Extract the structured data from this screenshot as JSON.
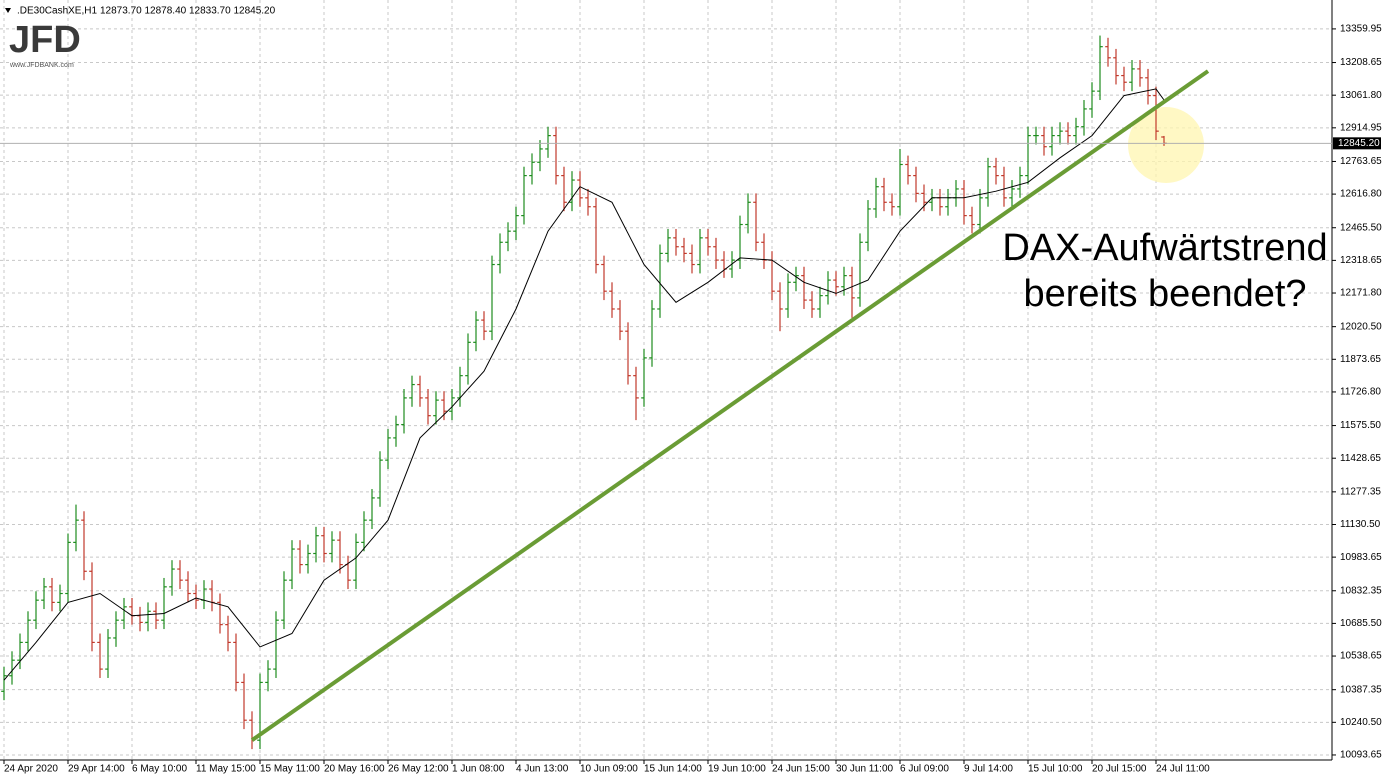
{
  "chart_data": {
    "type": "ohlc",
    "symbol": ".DE30CashXE,H1",
    "ohlc_label": "12873.70 12878.40 12833.70 12845.20",
    "logo": "JFD",
    "logo_url": "www.JFDBANK.com",
    "annotation": [
      "DAX-Aufwärtstrend",
      "bereits beendet?"
    ],
    "grid": true,
    "up_color": "#1e8c1e",
    "down_color": "#c0392b",
    "xlim": [
      -0.5,
      166
    ],
    "xticks": [
      {
        "value": 0,
        "label": "24 Apr 2020"
      },
      {
        "value": 8,
        "label": "29 Apr 14:00"
      },
      {
        "value": 16,
        "label": "6 May 10:00"
      },
      {
        "value": 24,
        "label": "11 May 15:00"
      },
      {
        "value": 32,
        "label": "15 May 11:00"
      },
      {
        "value": 40,
        "label": "20 May 16:00"
      },
      {
        "value": 48,
        "label": "26 May 12:00"
      },
      {
        "value": 56,
        "label": "1 Jun 08:00"
      },
      {
        "value": 64,
        "label": "4 Jun 13:00"
      },
      {
        "value": 72,
        "label": "10 Jun 09:00"
      },
      {
        "value": 80,
        "label": "15 Jun 14:00"
      },
      {
        "value": 88,
        "label": "19 Jun 10:00"
      },
      {
        "value": 96,
        "label": "24 Jun 15:00"
      },
      {
        "value": 104,
        "label": "30 Jun 11:00"
      },
      {
        "value": 112,
        "label": "6 Jul 09:00"
      },
      {
        "value": 120,
        "label": "9 Jul 14:00"
      },
      {
        "value": 128,
        "label": "15 Jul 10:00"
      },
      {
        "value": 136,
        "label": "20 Jul 15:00"
      },
      {
        "value": 144,
        "label": "24 Jul 11:00"
      }
    ],
    "ylim": [
      10071,
      13490
    ],
    "yticks": [
      13359.95,
      13208.65,
      {
        "value": 13061.8,
        "label": "13061.80"
      },
      12914.95,
      12763.65,
      {
        "value": 12616.8,
        "label": "12616.80"
      },
      {
        "value": 12465.5,
        "label": "12465.50"
      },
      12318.65,
      {
        "value": 12171.8,
        "label": "12171.80"
      },
      {
        "value": 12020.5,
        "label": "12020.50"
      },
      11873.65,
      {
        "value": 11726.8,
        "label": "11726.80"
      },
      {
        "value": 11575.5,
        "label": "11575.50"
      },
      11428.65,
      11277.35,
      {
        "value": 11130.5,
        "label": "11130.50"
      },
      10983.65,
      10832.35,
      {
        "value": 10685.5,
        "label": "10685.50"
      },
      10538.65,
      10387.35,
      {
        "value": 10240.5,
        "label": "10240.50"
      },
      10093.65
    ],
    "open": [
      10380,
      10450,
      10520,
      10600,
      10700,
      10790,
      10850,
      10780,
      10820,
      11050,
      11150,
      10920,
      10600,
      10480,
      10620,
      10700,
      10760,
      10720,
      10690,
      10740,
      10700,
      10850,
      10930,
      10880,
      10820,
      10790,
      10840,
      10780,
      10680,
      10600,
      10420,
      10250,
      10160,
      10420,
      10480,
      10700,
      10880,
      11020,
      10950,
      11000,
      11080,
      11000,
      11060,
      10950,
      10880,
      11050,
      11150,
      11250,
      11420,
      11520,
      11580,
      11700,
      11760,
      11700,
      11620,
      11690,
      11640,
      11700,
      11800,
      11950,
      12050,
      12000,
      12300,
      12400,
      12450,
      12520,
      12700,
      12760,
      12820,
      12880,
      12700,
      12580,
      12680,
      12600,
      12560,
      12300,
      12180,
      12100,
      12000,
      11800,
      11700,
      11880,
      12100,
      12350,
      12420,
      12380,
      12350,
      12300,
      12420,
      12380,
      12320,
      12280,
      12320,
      12480,
      12580,
      12400,
      12320,
      12180,
      12100,
      12220,
      12250,
      12140,
      12100,
      12160,
      12230,
      12200,
      12250,
      12150,
      12400,
      12550,
      12650,
      12580,
      12560,
      12750,
      12700,
      12620,
      12580,
      12600,
      12560,
      12600,
      12640,
      12520,
      12480,
      12600,
      12740,
      12700,
      12600,
      12640,
      12700,
      12880,
      12880,
      12830,
      12880,
      12900,
      12880,
      12920,
      13000,
      13080,
      13280,
      13230,
      13150,
      13120,
      13180,
      13140,
      13060,
      12873.7
    ],
    "high": [
      10490,
      10560,
      10640,
      10740,
      10830,
      10890,
      10890,
      10860,
      11090,
      11220,
      11190,
      10960,
      10640,
      10660,
      10740,
      10800,
      10800,
      10760,
      10780,
      10780,
      10890,
      10970,
      10970,
      10920,
      10860,
      10880,
      10880,
      10820,
      10720,
      10640,
      10460,
      10290,
      10460,
      10520,
      10740,
      10920,
      11060,
      11060,
      11040,
      11120,
      11120,
      11100,
      11100,
      10990,
      11090,
      11190,
      11290,
      11460,
      11560,
      11620,
      11740,
      11800,
      11800,
      11740,
      11730,
      11730,
      11740,
      11840,
      11990,
      12090,
      12090,
      12340,
      12440,
      12490,
      12560,
      12740,
      12800,
      12860,
      12920,
      12920,
      12740,
      12720,
      12720,
      12640,
      12600,
      12340,
      12220,
      12140,
      12040,
      11840,
      11920,
      12140,
      12390,
      12460,
      12460,
      12420,
      12390,
      12460,
      12460,
      12420,
      12360,
      12360,
      12520,
      12620,
      12620,
      12440,
      12360,
      12220,
      12260,
      12290,
      12290,
      12180,
      12200,
      12270,
      12270,
      12290,
      12290,
      12440,
      12590,
      12690,
      12690,
      12620,
      12820,
      12790,
      12740,
      12660,
      12640,
      12640,
      12640,
      12680,
      12680,
      12560,
      12640,
      12780,
      12780,
      12740,
      12680,
      12740,
      12920,
      12920,
      12920,
      12920,
      12940,
      12940,
      12960,
      13040,
      13120,
      13330,
      13320,
      13270,
      13190,
      13220,
      13220,
      13180,
      13100,
      12878.4
    ],
    "low": [
      10340,
      10410,
      10480,
      10560,
      10660,
      10750,
      10740,
      10740,
      10780,
      11010,
      10880,
      10560,
      10440,
      10440,
      10580,
      10660,
      10680,
      10650,
      10650,
      10660,
      10660,
      10810,
      10840,
      10780,
      10750,
      10750,
      10740,
      10640,
      10560,
      10380,
      10210,
      10120,
      10120,
      10380,
      10440,
      10660,
      10840,
      10910,
      10910,
      10960,
      10960,
      10960,
      10910,
      10840,
      10840,
      11010,
      11110,
      11210,
      11380,
      11480,
      11540,
      11660,
      11660,
      11580,
      11580,
      11600,
      11600,
      11660,
      11760,
      11910,
      11960,
      11960,
      12260,
      12360,
      12410,
      12480,
      12660,
      12720,
      12780,
      12660,
      12540,
      12540,
      12560,
      12520,
      12260,
      12140,
      12060,
      11960,
      11760,
      11600,
      11660,
      11840,
      12060,
      12310,
      12340,
      12310,
      12260,
      12260,
      12340,
      12280,
      12240,
      12240,
      12280,
      12440,
      12360,
      12280,
      12140,
      12000,
      12060,
      12180,
      12100,
      12060,
      12060,
      12120,
      12160,
      12160,
      12060,
      12110,
      12360,
      12510,
      12540,
      12520,
      12520,
      12660,
      12580,
      12540,
      12540,
      12520,
      12520,
      12560,
      12480,
      12440,
      12440,
      12560,
      12660,
      12560,
      12560,
      12600,
      12660,
      12840,
      12790,
      12790,
      12840,
      12840,
      12840,
      12880,
      12960,
      13040,
      13190,
      13110,
      13080,
      13080,
      13100,
      13020,
      12860,
      12833.7
    ],
    "close": [
      10450,
      10520,
      10600,
      10700,
      10790,
      10850,
      10780,
      10820,
      11050,
      11150,
      10920,
      10600,
      10480,
      10620,
      10700,
      10760,
      10720,
      10690,
      10740,
      10700,
      10850,
      10930,
      10880,
      10820,
      10790,
      10840,
      10780,
      10680,
      10600,
      10420,
      10250,
      10160,
      10420,
      10480,
      10700,
      10880,
      11020,
      10950,
      11000,
      11080,
      11000,
      11060,
      10950,
      10880,
      11050,
      11150,
      11250,
      11420,
      11520,
      11580,
      11700,
      11760,
      11700,
      11620,
      11690,
      11640,
      11700,
      11800,
      11950,
      12050,
      12000,
      12300,
      12400,
      12450,
      12520,
      12700,
      12760,
      12820,
      12880,
      12700,
      12580,
      12680,
      12600,
      12560,
      12300,
      12180,
      12100,
      12000,
      11800,
      11700,
      11880,
      12100,
      12350,
      12420,
      12380,
      12350,
      12300,
      12420,
      12380,
      12320,
      12280,
      12320,
      12480,
      12580,
      12400,
      12320,
      12180,
      12100,
      12220,
      12250,
      12140,
      12100,
      12160,
      12230,
      12200,
      12250,
      12150,
      12400,
      12550,
      12650,
      12580,
      12560,
      12750,
      12700,
      12620,
      12580,
      12600,
      12560,
      12600,
      12640,
      12520,
      12480,
      12600,
      12740,
      12700,
      12600,
      12640,
      12700,
      12880,
      12880,
      12830,
      12880,
      12900,
      12880,
      12920,
      13000,
      13080,
      13280,
      13230,
      13150,
      13120,
      13180,
      13140,
      13060,
      12900,
      12845.2
    ],
    "moving_average": {
      "color": "#000000",
      "x": [
        0,
        4,
        8,
        12,
        16,
        20,
        24,
        28,
        32,
        36,
        40,
        44,
        48,
        52,
        56,
        60,
        64,
        68,
        72,
        76,
        80,
        84,
        88,
        92,
        96,
        100,
        104,
        108,
        112,
        116,
        120,
        124,
        128,
        132,
        136,
        140,
        144,
        145
      ],
      "values": [
        10430,
        10600,
        10780,
        10820,
        10720,
        10730,
        10800,
        10760,
        10580,
        10640,
        10880,
        10980,
        11150,
        11520,
        11660,
        11820,
        12100,
        12450,
        12650,
        12580,
        12300,
        12130,
        12220,
        12330,
        12320,
        12220,
        12170,
        12230,
        12450,
        12600,
        12600,
        12630,
        12670,
        12780,
        12880,
        13060,
        13090,
        13040
      ]
    },
    "trendline": {
      "color": "#6a9c35",
      "x": [
        31,
        150.5
      ],
      "values": [
        10160,
        13170
      ]
    },
    "current_price": {
      "value": 12845.2,
      "label": "12845.20"
    }
  }
}
